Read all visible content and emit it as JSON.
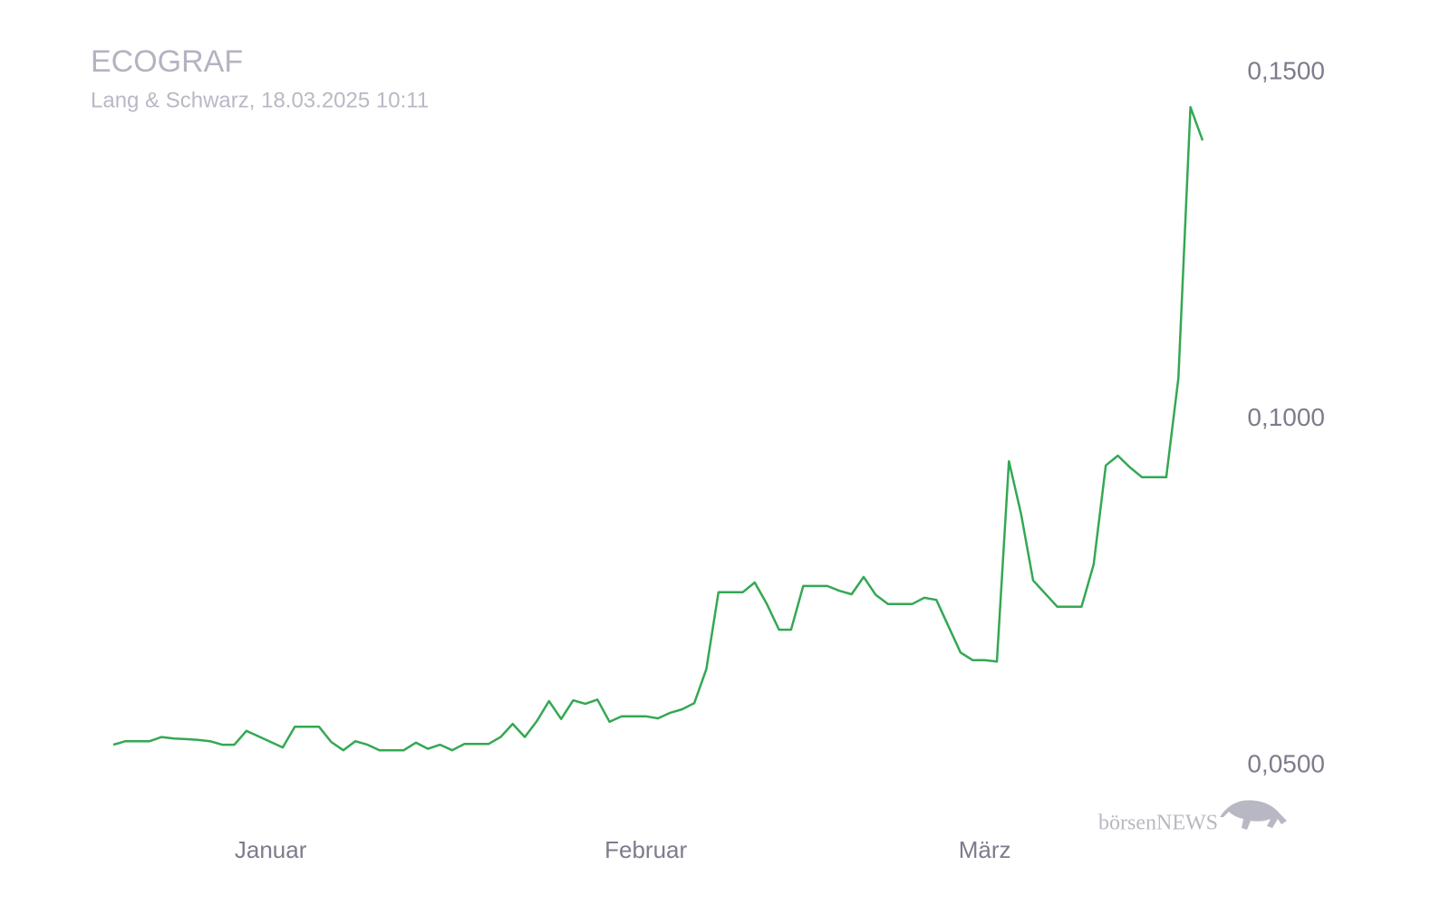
{
  "chart_data": {
    "type": "line",
    "title": "ECOGRAF",
    "subtitle": "Lang & Schwarz, 18.03.2025 10:11",
    "watermark": "börsenNEWS",
    "categories": [
      null,
      null,
      null,
      null,
      null,
      null,
      null,
      null,
      null,
      null,
      null,
      null,
      null,
      "Januar",
      null,
      null,
      null,
      null,
      null,
      null,
      null,
      null,
      null,
      null,
      null,
      null,
      null,
      null,
      null,
      null,
      null,
      null,
      null,
      null,
      null,
      null,
      null,
      null,
      null,
      null,
      null,
      null,
      null,
      null,
      "Februar",
      null,
      null,
      null,
      null,
      null,
      null,
      null,
      null,
      null,
      null,
      null,
      null,
      null,
      null,
      null,
      null,
      null,
      null,
      null,
      null,
      null,
      null,
      null,
      null,
      null,
      null,
      null,
      "März",
      null,
      null,
      null,
      null,
      null,
      null,
      null,
      null,
      null,
      null,
      null,
      null,
      null,
      null,
      null,
      null,
      null,
      null
    ],
    "values": [
      0.053,
      0.0535,
      0.0535,
      0.0535,
      0.0541,
      0.0539,
      0.0538,
      0.0537,
      0.0535,
      0.053,
      0.053,
      0.055,
      0.0542,
      0.0534,
      0.0526,
      0.0556,
      0.0556,
      0.0556,
      0.0534,
      0.0522,
      0.0535,
      0.053,
      0.0522,
      0.0522,
      0.0522,
      0.0533,
      0.0524,
      0.053,
      0.0522,
      0.0531,
      0.0531,
      0.0531,
      0.0541,
      0.056,
      0.0541,
      0.0564,
      0.0593,
      0.0567,
      0.0594,
      0.0589,
      0.0595,
      0.0563,
      0.0571,
      0.0571,
      0.0571,
      0.0568,
      0.0576,
      0.0581,
      0.059,
      0.0639,
      0.075,
      0.075,
      0.075,
      0.0764,
      0.0733,
      0.0696,
      0.0696,
      0.0759,
      0.0759,
      0.0759,
      0.0752,
      0.0747,
      0.0772,
      0.0746,
      0.0733,
      0.0733,
      0.0733,
      0.0742,
      0.0739,
      0.0701,
      0.0663,
      0.0652,
      0.0652,
      0.065,
      0.0939,
      0.0863,
      0.0767,
      0.0748,
      0.0729,
      0.0729,
      0.0729,
      0.079,
      0.0933,
      0.0947,
      0.093,
      0.0916,
      0.0916,
      0.0916,
      0.1059,
      0.145,
      0.1402
    ],
    "color": "#34a853",
    "ylim": [
      0.05,
      0.15
    ],
    "yticks": [
      {
        "value": 0.05,
        "label": "0,0500"
      },
      {
        "value": 0.1,
        "label": "0,1000"
      },
      {
        "value": 0.15,
        "label": "0,1500"
      }
    ],
    "grid": false
  }
}
